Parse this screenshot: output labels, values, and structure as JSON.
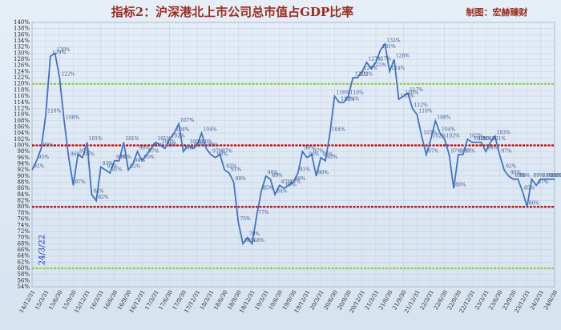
{
  "chart_data": {
    "type": "line",
    "title": "指标2：沪深港北上市公司总市值占GDP比率",
    "subtitle": "制图：宏赫臻财",
    "annotation": "24/3/22",
    "categories": [
      "14/12/31",
      null,
      null,
      "15/3/31",
      null,
      null,
      "15/6/30",
      null,
      null,
      "15/9/30",
      null,
      null,
      "15/12/31",
      null,
      null,
      "16/3/31",
      null,
      null,
      "16/6/30",
      null,
      null,
      "16/9/30",
      null,
      null,
      "16/12/31",
      null,
      null,
      "17/3/31",
      null,
      null,
      "17/6/30",
      null,
      null,
      "17/9/30",
      null,
      null,
      "17/12/31",
      null,
      null,
      "18/3/31",
      null,
      null,
      "18/6/30",
      null,
      null,
      "18/9/30",
      null,
      null,
      "18/12/31",
      null,
      null,
      "19/3/31",
      null,
      null,
      "19/6/30",
      null,
      null,
      "19/9/30",
      null,
      null,
      "19/12/31",
      null,
      null,
      "20/3/31",
      null,
      null,
      "20/6/30",
      null,
      null,
      "20/9/30",
      null,
      null,
      "20/12/31",
      null,
      null,
      "21/3/31",
      null,
      null,
      "21/6/30",
      null,
      null,
      "21/9/30",
      null,
      null,
      "21/12/31",
      null,
      null,
      "22/3/31",
      null,
      null,
      "22/6/30",
      null,
      null,
      "22/9/30",
      null,
      null,
      "22/12/31",
      null,
      null,
      "23/3/31",
      null,
      null,
      "23/6/30",
      null,
      null,
      "23/9/30",
      null,
      null,
      "23/12/31",
      null,
      null,
      "24/3/31",
      null,
      null,
      "24/6/30"
    ],
    "series": [
      {
        "color": "#4472c4",
        "values": [
          92,
          95,
          99,
          110,
          129,
          130,
          122,
          108,
          96,
          87,
          97,
          96,
          101,
          84,
          82,
          93,
          92,
          91,
          95,
          95,
          101,
          92,
          94,
          98,
          95,
          97,
          99,
          101,
          100,
          99,
          102,
          104,
          107,
          98,
          100,
          99,
          100,
          104,
          99,
          97,
          96,
          97,
          92,
          91,
          88,
          75,
          68,
          70,
          68,
          77,
          85,
          90,
          89,
          84,
          87,
          86,
          87,
          88,
          91,
          98,
          96,
          97,
          90,
          96,
          95,
          104,
          116,
          114,
          114,
          116,
          122,
          122,
          124,
          127,
          125,
          127,
          131,
          133,
          124,
          128,
          115,
          116,
          117,
          112,
          110,
          103,
          97,
          102,
          108,
          104,
          102,
          97,
          86,
          97,
          97,
          102,
          101,
          101,
          101,
          98,
          101,
          103,
          97,
          92,
          90,
          89,
          89,
          85,
          80,
          89,
          87,
          89,
          89,
          89,
          89
        ],
        "value_labels": [
          "92%",
          "95%",
          "99%",
          "110%",
          "129%",
          "130%",
          "122%",
          "108%",
          "96%",
          "87%",
          "97%",
          "96%",
          "101%",
          "84%",
          "82%",
          "93%",
          "92%",
          "91%",
          "95%",
          "95%",
          "101%",
          "92%",
          "94%",
          "98%",
          "95%",
          "97%",
          "99%",
          "101%",
          "100%",
          "99%",
          "102%",
          "104%",
          "107%",
          "98%",
          "100%",
          "99%",
          "100%",
          "104%",
          "99%",
          "97%",
          "96%",
          "97%",
          "92%",
          "91%",
          "88%",
          "75%",
          "68%",
          "70%",
          "68%",
          "77%",
          "85%",
          "90%",
          "89%",
          "84%",
          "87%",
          "86%",
          "87%",
          "88%",
          "91%",
          "98%",
          "96%",
          "97%",
          "90%",
          "96%",
          "95%",
          "104%",
          "116%",
          "114%",
          "114%",
          "116%",
          "122%",
          "122%",
          "124%",
          "127%",
          "125%",
          "127%",
          "131%",
          "133%",
          "124%",
          "128%",
          "115%",
          "116%",
          "117%",
          "112%",
          "110%",
          "103%",
          "97%",
          "102%",
          "108%",
          "104%",
          "102%",
          "97%",
          "86%",
          "97%",
          "97%",
          "102%",
          "101%",
          "101%",
          "101%",
          "98%",
          "101%",
          "103%",
          "97%",
          "92%",
          "90%",
          "89%",
          "89%",
          "85%",
          "80%",
          "89%",
          "87%",
          "89%",
          "89%",
          "89%",
          "89%"
        ]
      }
    ],
    "reference_lines": [
      {
        "value": 120,
        "color": "#92d050"
      },
      {
        "value": 100,
        "color": "#c00000"
      },
      {
        "value": 80,
        "color": "#c00000"
      },
      {
        "value": 60,
        "color": "#92d050"
      }
    ],
    "ylim": [
      54,
      140
    ],
    "yticks": [
      {
        "value": 54,
        "label": "54%"
      },
      {
        "value": 56,
        "label": "56%"
      },
      {
        "value": 58,
        "label": "58%"
      },
      {
        "value": 60,
        "label": "60%"
      },
      {
        "value": 62,
        "label": "62%"
      },
      {
        "value": 64,
        "label": "64%"
      },
      {
        "value": 66,
        "label": "66%"
      },
      {
        "value": 68,
        "label": "68%"
      },
      {
        "value": 70,
        "label": "70%"
      },
      {
        "value": 72,
        "label": "72%"
      },
      {
        "value": 74,
        "label": "74%"
      },
      {
        "value": 76,
        "label": "76%"
      },
      {
        "value": 78,
        "label": "78%"
      },
      {
        "value": 80,
        "label": "80%"
      },
      {
        "value": 82,
        "label": "82%"
      },
      {
        "value": 84,
        "label": "84%"
      },
      {
        "value": 86,
        "label": "86%"
      },
      {
        "value": 88,
        "label": "88%"
      },
      {
        "value": 90,
        "label": "90%"
      },
      {
        "value": 92,
        "label": "92%"
      },
      {
        "value": 94,
        "label": "94%"
      },
      {
        "value": 96,
        "label": "96%"
      },
      {
        "value": 98,
        "label": "98%"
      },
      {
        "value": 100,
        "label": "100%"
      },
      {
        "value": 102,
        "label": "102%"
      },
      {
        "value": 104,
        "label": "104%"
      },
      {
        "value": 106,
        "label": "106%"
      },
      {
        "value": 108,
        "label": "108%"
      },
      {
        "value": 110,
        "label": "110%"
      },
      {
        "value": 112,
        "label": "112%"
      },
      {
        "value": 114,
        "label": "114%"
      },
      {
        "value": 116,
        "label": "116%"
      },
      {
        "value": 118,
        "label": "118%"
      },
      {
        "value": 120,
        "label": "120%"
      },
      {
        "value": 122,
        "label": "122%"
      },
      {
        "value": 124,
        "label": "124%"
      },
      {
        "value": 126,
        "label": "126%"
      },
      {
        "value": 128,
        "label": "128%"
      },
      {
        "value": 130,
        "label": "130%"
      },
      {
        "value": 132,
        "label": "132%"
      },
      {
        "value": 134,
        "label": "134%"
      },
      {
        "value": 136,
        "label": "136%"
      },
      {
        "value": 138,
        "label": "138%"
      },
      {
        "value": 140,
        "label": "140%"
      }
    ],
    "grid": true
  }
}
